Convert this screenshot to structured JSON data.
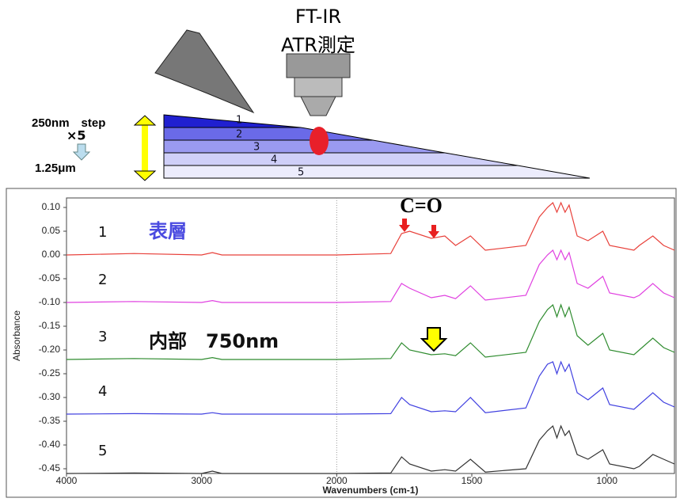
{
  "diagram": {
    "technique": "FT-IR",
    "mode": "ATR測定",
    "step": "250nm　step",
    "repeat": "×5",
    "depth": "1.25μm",
    "layers": [
      "1",
      "2",
      "3",
      "4",
      "5"
    ]
  },
  "chart_data": {
    "type": "line",
    "x_label": "Wavenumbers (cm-1)",
    "y_label": "Absorbance",
    "annotations": [
      "C=O",
      "表層",
      "内部　750nm"
    ],
    "x": [
      4000,
      3500,
      3000,
      2920,
      2850,
      2500,
      2000,
      1800,
      1760,
      1730,
      1650,
      1600,
      1560,
      1505,
      1450,
      1300,
      1250,
      1220,
      1200,
      1185,
      1170,
      1155,
      1140,
      1110,
      1070,
      1015,
      990,
      900,
      880,
      830,
      790,
      750
    ],
    "series": [
      {
        "name": "1",
        "color": "#e8403a",
        "values": [
          0,
          0.003,
          0,
          0.005,
          0,
          0,
          0,
          0.003,
          0.045,
          0.05,
          0.035,
          0.04,
          0.02,
          0.04,
          0.01,
          0.02,
          0.08,
          0.1,
          0.11,
          0.09,
          0.11,
          0.09,
          0.105,
          0.04,
          0.03,
          0.05,
          0.02,
          0.01,
          0.02,
          0.04,
          0.02,
          0.01
        ]
      },
      {
        "name": "2",
        "color": "#e040e0",
        "values": [
          -0.1,
          -0.098,
          -0.1,
          -0.096,
          -0.1,
          -0.1,
          -0.1,
          -0.098,
          -0.06,
          -0.07,
          -0.09,
          -0.085,
          -0.092,
          -0.065,
          -0.095,
          -0.085,
          -0.02,
          0,
          0.01,
          -0.01,
          0.01,
          -0.01,
          0.005,
          -0.06,
          -0.07,
          -0.045,
          -0.08,
          -0.09,
          -0.085,
          -0.06,
          -0.08,
          -0.09
        ]
      },
      {
        "name": "3",
        "color": "#2e8b2e",
        "values": [
          -0.22,
          -0.218,
          -0.22,
          -0.216,
          -0.22,
          -0.22,
          -0.22,
          -0.218,
          -0.185,
          -0.2,
          -0.21,
          -0.208,
          -0.212,
          -0.185,
          -0.215,
          -0.205,
          -0.14,
          -0.115,
          -0.105,
          -0.13,
          -0.105,
          -0.13,
          -0.11,
          -0.17,
          -0.19,
          -0.165,
          -0.2,
          -0.21,
          -0.2,
          -0.175,
          -0.195,
          -0.205
        ]
      },
      {
        "name": "4",
        "color": "#4040e0",
        "values": [
          -0.335,
          -0.334,
          -0.335,
          -0.332,
          -0.335,
          -0.335,
          -0.335,
          -0.334,
          -0.3,
          -0.315,
          -0.33,
          -0.328,
          -0.33,
          -0.3,
          -0.332,
          -0.322,
          -0.255,
          -0.23,
          -0.225,
          -0.25,
          -0.225,
          -0.245,
          -0.23,
          -0.29,
          -0.305,
          -0.28,
          -0.315,
          -0.325,
          -0.315,
          -0.29,
          -0.31,
          -0.32
        ]
      },
      {
        "name": "5",
        "color": "#333333",
        "values": [
          -0.46,
          -0.459,
          -0.46,
          -0.455,
          -0.46,
          -0.46,
          -0.46,
          -0.459,
          -0.425,
          -0.44,
          -0.455,
          -0.452,
          -0.455,
          -0.43,
          -0.457,
          -0.45,
          -0.39,
          -0.37,
          -0.36,
          -0.385,
          -0.36,
          -0.38,
          -0.37,
          -0.42,
          -0.43,
          -0.41,
          -0.44,
          -0.45,
          -0.445,
          -0.42,
          -0.43,
          -0.44
        ]
      }
    ],
    "xlim": [
      4000,
      750
    ],
    "x_scale_break": 2000,
    "vline": 2000,
    "xticks": [
      4000,
      3000,
      2000,
      1500,
      1000
    ],
    "ylim": [
      -0.46,
      0.12
    ],
    "yticks": [
      {
        "value": 0.1,
        "label": "0.10"
      },
      {
        "value": 0.05,
        "label": "0.05"
      },
      {
        "value": 0,
        "label": "0.00"
      },
      {
        "value": -0.05,
        "label": "-0.05"
      },
      {
        "value": -0.1,
        "label": "-0.10"
      },
      {
        "value": -0.15,
        "label": "-0.15"
      },
      {
        "value": -0.2,
        "label": "-0.20"
      },
      {
        "value": -0.25,
        "label": "-0.25"
      },
      {
        "value": -0.3,
        "label": "-0.30"
      },
      {
        "value": -0.35,
        "label": "-0.35"
      },
      {
        "value": -0.4,
        "label": "-0.40"
      },
      {
        "value": -0.45,
        "label": "-0.45"
      }
    ]
  }
}
